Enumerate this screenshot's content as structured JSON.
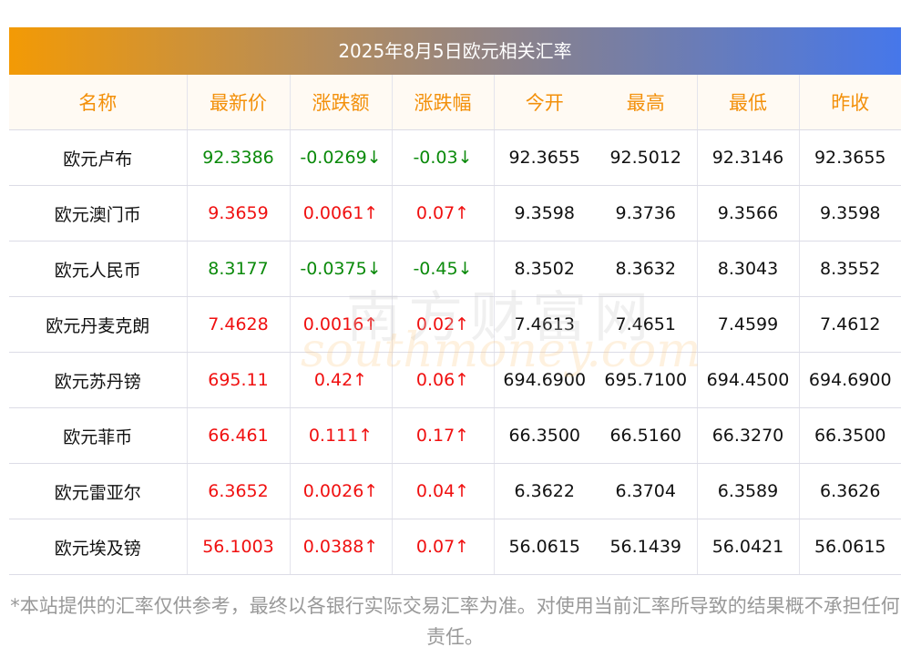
{
  "title": "2025年8月5日欧元相关汇率",
  "headers": [
    "名称",
    "最新价",
    "涨跌额",
    "涨跌幅",
    "今开",
    "最高",
    "最低",
    "昨收"
  ],
  "rows": [
    {
      "name": "欧元卢布",
      "latest": "92.3386",
      "change": "-0.0269↓",
      "pct": "-0.03↓",
      "dir": "down",
      "open": "92.3655",
      "high": "92.5012",
      "low": "92.3146",
      "prev": "92.3655"
    },
    {
      "name": "欧元澳门币",
      "latest": "9.3659",
      "change": "0.0061↑",
      "pct": "0.07↑",
      "dir": "up",
      "open": "9.3598",
      "high": "9.3736",
      "low": "9.3566",
      "prev": "9.3598"
    },
    {
      "name": "欧元人民币",
      "latest": "8.3177",
      "change": "-0.0375↓",
      "pct": "-0.45↓",
      "dir": "down",
      "open": "8.3502",
      "high": "8.3632",
      "low": "8.3043",
      "prev": "8.3552"
    },
    {
      "name": "欧元丹麦克朗",
      "latest": "7.4628",
      "change": "0.0016↑",
      "pct": "0.02↑",
      "dir": "up",
      "open": "7.4613",
      "high": "7.4651",
      "low": "7.4599",
      "prev": "7.4612"
    },
    {
      "name": "欧元苏丹镑",
      "latest": "695.11",
      "change": "0.42↑",
      "pct": "0.06↑",
      "dir": "up",
      "open": "694.6900",
      "high": "695.7100",
      "low": "694.4500",
      "prev": "694.6900"
    },
    {
      "name": "欧元菲币",
      "latest": "66.461",
      "change": "0.111↑",
      "pct": "0.17↑",
      "dir": "up",
      "open": "66.3500",
      "high": "66.5160",
      "low": "66.3270",
      "prev": "66.3500"
    },
    {
      "name": "欧元雷亚尔",
      "latest": "6.3652",
      "change": "0.0026↑",
      "pct": "0.04↑",
      "dir": "up",
      "open": "6.3622",
      "high": "6.3704",
      "low": "6.3589",
      "prev": "6.3626"
    },
    {
      "name": "欧元埃及镑",
      "latest": "56.1003",
      "change": "0.0388↑",
      "pct": "0.07↑",
      "dir": "up",
      "open": "56.0615",
      "high": "56.1439",
      "low": "56.0421",
      "prev": "56.0615"
    }
  ],
  "watermark": {
    "cn": "南方财富网",
    "en": "southmoney.com"
  },
  "note": "*本站提供的汇率仅供参考，最终以各银行实际交易汇率为准。对使用当前汇率所导致的结果概不承担任何责任。",
  "colors": {
    "up": "#f01010",
    "down": "#0b8a0b",
    "header_text": "#f3900a"
  }
}
